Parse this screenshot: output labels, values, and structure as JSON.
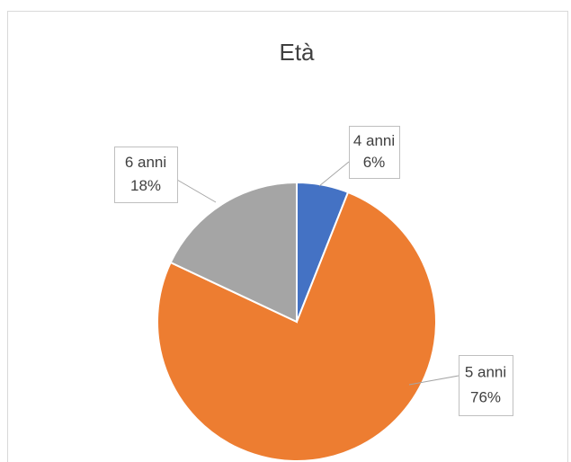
{
  "chart_data": {
    "type": "pie",
    "title": "Età",
    "categories": [
      "4 anni",
      "5 anni",
      "6 anni"
    ],
    "values": [
      6,
      76,
      18
    ],
    "value_labels": [
      "6%",
      "76%",
      "18%"
    ],
    "colors": [
      "#4472c4",
      "#ed7d31",
      "#a5a5a5"
    ]
  }
}
